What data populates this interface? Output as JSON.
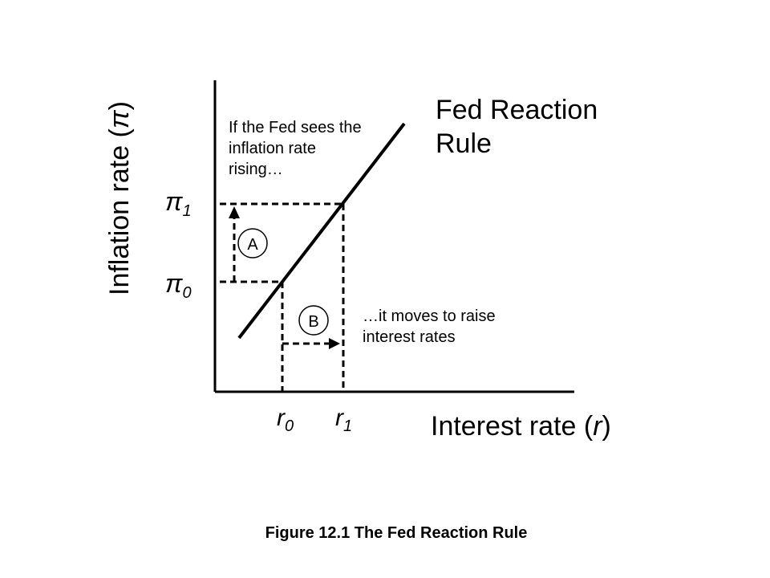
{
  "diagram": {
    "y_axis_label": {
      "text": "Inflation rate (",
      "symbol": "π",
      "close": ")"
    },
    "x_axis_label": {
      "text": "Interest rate (",
      "symbol": "r",
      "close": ")"
    },
    "rule_title_line1": "Fed Reaction",
    "rule_title_line2": "Rule",
    "note_top": [
      "If the Fed sees the",
      "inflation rate",
      "rising…"
    ],
    "note_bottom": [
      "…it moves to raise",
      "interest rates"
    ],
    "marker_a": "A",
    "marker_b": "B",
    "pi1": {
      "base": "π",
      "sub": "1"
    },
    "pi0": {
      "base": "π",
      "sub": "0"
    },
    "r0": {
      "base": "r",
      "sub": "0"
    },
    "r1": {
      "base": "r",
      "sub": "1"
    }
  },
  "caption": "Figure 12.1 The Fed Reaction Rule"
}
